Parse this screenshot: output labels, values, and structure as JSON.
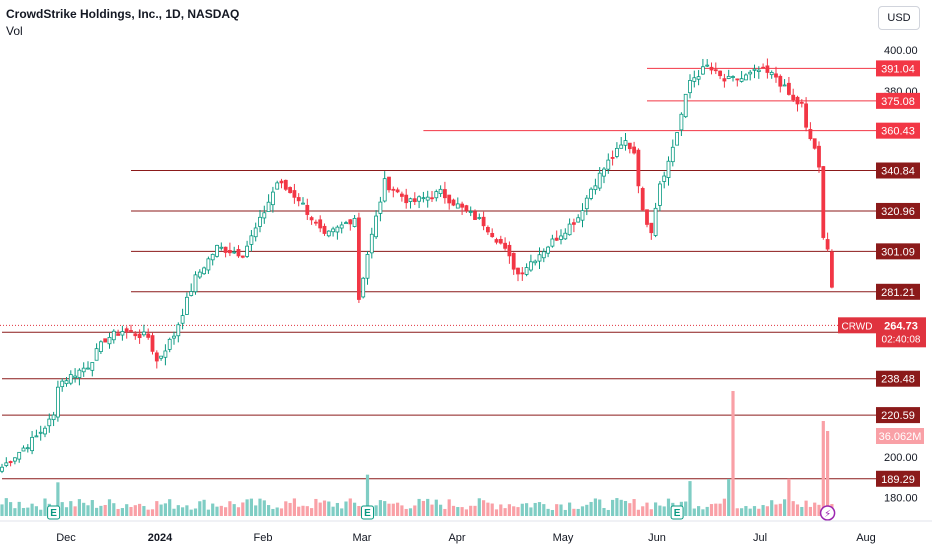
{
  "header": {
    "title": "CrowdStrike Holdings, Inc., 1D, NASDAQ",
    "indicator": "Vol",
    "currency": "USD"
  },
  "colors": {
    "up": "#089981",
    "down": "#f23645",
    "level": "#8b1a1a",
    "resistance": "#f23645",
    "vol_up": "#7fcdc4",
    "vol_down": "#f9a0a6",
    "current": "#e0333f"
  },
  "chart_data": {
    "type": "candlestick",
    "y_axis": {
      "min": 170,
      "max": 405,
      "ticks": [
        400,
        380,
        200,
        180
      ],
      "tick_labels": [
        "400.00",
        "380.00",
        "200.00",
        "180.00"
      ]
    },
    "x_axis": {
      "labels": [
        "Dec",
        "2024",
        "Feb",
        "Mar",
        "Apr",
        "May",
        "Jun",
        "Jul",
        "Aug"
      ]
    },
    "levels": [
      {
        "value": 391.04,
        "label": "391.04",
        "from": 150
      },
      {
        "value": 375.08,
        "label": "375.08",
        "from": 150
      },
      {
        "value": 360.43,
        "label": "360.43",
        "from": 98
      },
      {
        "value": 340.84,
        "label": "340.84",
        "from": 30
      },
      {
        "value": 320.96,
        "label": "320.96",
        "from": 30
      },
      {
        "value": 301.09,
        "label": "301.09",
        "from": 30
      },
      {
        "value": 281.21,
        "label": "281.21",
        "from": 30
      },
      {
        "value": 261.34,
        "label": "261.34",
        "from": 0
      },
      {
        "value": 238.48,
        "label": "238.48",
        "from": 0
      },
      {
        "value": 220.59,
        "label": "220.59",
        "from": 0
      },
      {
        "value": 189.29,
        "label": "189.29",
        "from": 0
      }
    ],
    "current_price": {
      "symbol": "CRWD",
      "value": 264.73,
      "label": "264.73",
      "countdown": "02:40:08"
    },
    "volume_label": "36.062M",
    "event_markers": [
      "E",
      "E",
      "E",
      "E"
    ],
    "ohlc_anchors": [
      [
        0,
        195
      ],
      [
        8,
        210
      ],
      [
        12,
        220
      ],
      [
        13,
        236
      ],
      [
        20,
        245
      ],
      [
        24,
        258
      ],
      [
        28,
        262
      ],
      [
        34,
        259
      ],
      [
        36,
        247
      ],
      [
        40,
        260
      ],
      [
        45,
        288
      ],
      [
        50,
        303
      ],
      [
        56,
        300
      ],
      [
        60,
        316
      ],
      [
        64,
        335
      ],
      [
        69,
        327
      ],
      [
        75,
        308
      ],
      [
        78,
        312
      ],
      [
        82,
        318
      ],
      [
        83,
        278
      ],
      [
        85,
        300
      ],
      [
        89,
        335
      ],
      [
        95,
        325
      ],
      [
        102,
        330
      ],
      [
        107,
        322
      ],
      [
        112,
        315
      ],
      [
        116,
        305
      ],
      [
        120,
        290
      ],
      [
        124,
        298
      ],
      [
        130,
        310
      ],
      [
        134,
        318
      ],
      [
        137,
        332
      ],
      [
        141,
        345
      ],
      [
        145,
        355
      ],
      [
        147,
        350
      ],
      [
        149,
        320
      ],
      [
        151,
        312
      ],
      [
        153,
        335
      ],
      [
        155,
        345
      ],
      [
        157,
        360
      ],
      [
        160,
        385
      ],
      [
        164,
        392
      ],
      [
        168,
        385
      ],
      [
        172,
        386
      ],
      [
        176,
        390
      ],
      [
        180,
        387
      ],
      [
        184,
        375
      ],
      [
        186,
        373
      ],
      [
        187,
        361
      ],
      [
        189,
        352
      ],
      [
        190,
        341
      ],
      [
        191,
        307
      ],
      [
        192,
        304
      ],
      [
        193,
        284
      ]
    ]
  }
}
